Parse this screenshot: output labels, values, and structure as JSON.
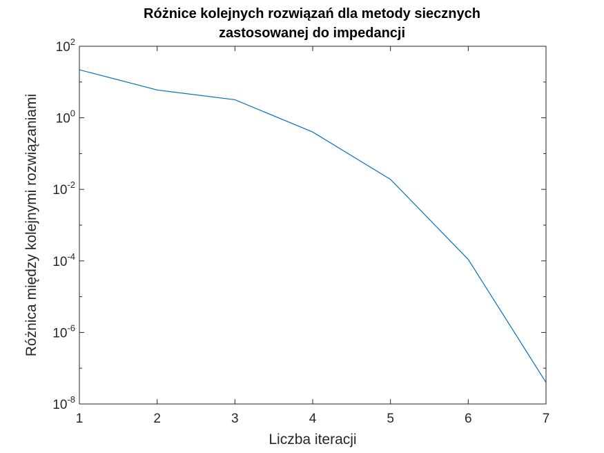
{
  "chart_data": {
    "type": "line",
    "title": [
      "Różnice kolejnych rozwiązań dla metody siecznych",
      "zastosowanej do impedancji"
    ],
    "xlabel": "Liczba iteracji",
    "ylabel": "Różnica między kolejnymi rozwiązaniami",
    "yscale": "log",
    "xlim": [
      1,
      7
    ],
    "ylim": [
      1e-08,
      100
    ],
    "xticks": [
      1,
      2,
      3,
      4,
      5,
      6,
      7
    ],
    "xtick_labels": [
      "1",
      "2",
      "3",
      "4",
      "5",
      "6",
      "7"
    ],
    "yticks": [
      {
        "value": 1e-08,
        "base": "10",
        "exp": "-8"
      },
      {
        "value": 1e-06,
        "base": "10",
        "exp": "-6"
      },
      {
        "value": 0.0001,
        "base": "10",
        "exp": "-4"
      },
      {
        "value": 0.01,
        "base": "10",
        "exp": "-2"
      },
      {
        "value": 1,
        "base": "10",
        "exp": "0"
      },
      {
        "value": 100,
        "base": "10",
        "exp": "2"
      }
    ],
    "grid": false,
    "line_color": "#0072BD",
    "series": [
      {
        "x": [
          1,
          2,
          3,
          4,
          5,
          6,
          7
        ],
        "values": [
          22,
          6,
          3.2,
          0.4,
          0.019,
          0.00011,
          4e-08
        ]
      }
    ]
  }
}
